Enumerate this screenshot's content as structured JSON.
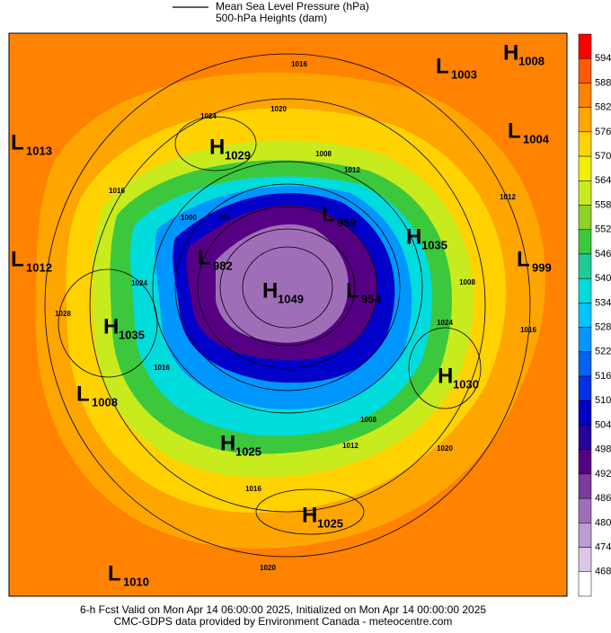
{
  "header": {
    "lines": [
      "Mean Sea Level Pressure (hPa)",
      "500-hPa Heights (dam)"
    ]
  },
  "colorbar": {
    "labels": [
      594,
      588,
      582,
      576,
      570,
      564,
      558,
      552,
      546,
      540,
      534,
      528,
      522,
      516,
      510,
      504,
      498,
      492,
      486,
      480,
      474,
      468
    ],
    "colors": [
      "#ff0000",
      "#ff5a00",
      "#ff8200",
      "#ffa500",
      "#ffd200",
      "#f0f000",
      "#c8eb1e",
      "#8cd228",
      "#3cc83c",
      "#1ecd96",
      "#00dcdc",
      "#00c3ff",
      "#0096ff",
      "#0064f0",
      "#0032e6",
      "#0000c8",
      "#28009b",
      "#550082",
      "#7d3c9b",
      "#a06eb9",
      "#be9bd2",
      "#dcc8e6",
      "#ffffff"
    ]
  },
  "centers": [
    {
      "letter": "L",
      "value": "1003"
    },
    {
      "letter": "H",
      "value": "1008"
    },
    {
      "letter": "L",
      "value": "1013"
    },
    {
      "letter": "H",
      "value": "1029"
    },
    {
      "letter": "L",
      "value": "1004"
    },
    {
      "letter": "L",
      "value": "959"
    },
    {
      "letter": "H",
      "value": "1035"
    },
    {
      "letter": "L",
      "value": "1012"
    },
    {
      "letter": "L",
      "value": "982"
    },
    {
      "letter": "H",
      "value": "1049"
    },
    {
      "letter": "L",
      "value": "954"
    },
    {
      "letter": "L",
      "value": "999"
    },
    {
      "letter": "H",
      "value": "1035"
    },
    {
      "letter": "H",
      "value": "1030"
    },
    {
      "letter": "L",
      "value": "1008"
    },
    {
      "letter": "H",
      "value": "1025"
    },
    {
      "letter": "H",
      "value": "1025"
    },
    {
      "letter": "L",
      "value": "1010"
    }
  ],
  "contour_labels": [
    "1016",
    "1020",
    "1024",
    "1016",
    "1012",
    "1008",
    "996",
    "1000",
    "1024",
    "1028",
    "1016",
    "1008",
    "1012",
    "1020",
    "1016",
    "1020",
    "1024",
    "1016",
    "1012",
    "1008"
  ],
  "footer": {
    "lines": [
      "6-h Fcst Valid on Mon Apr 14 06:00:00 2025, Initialized on Mon Apr 14 00:00:00 2025",
      "CMC-GDPS data provided by Environment Canada - meteocentre.com"
    ]
  }
}
